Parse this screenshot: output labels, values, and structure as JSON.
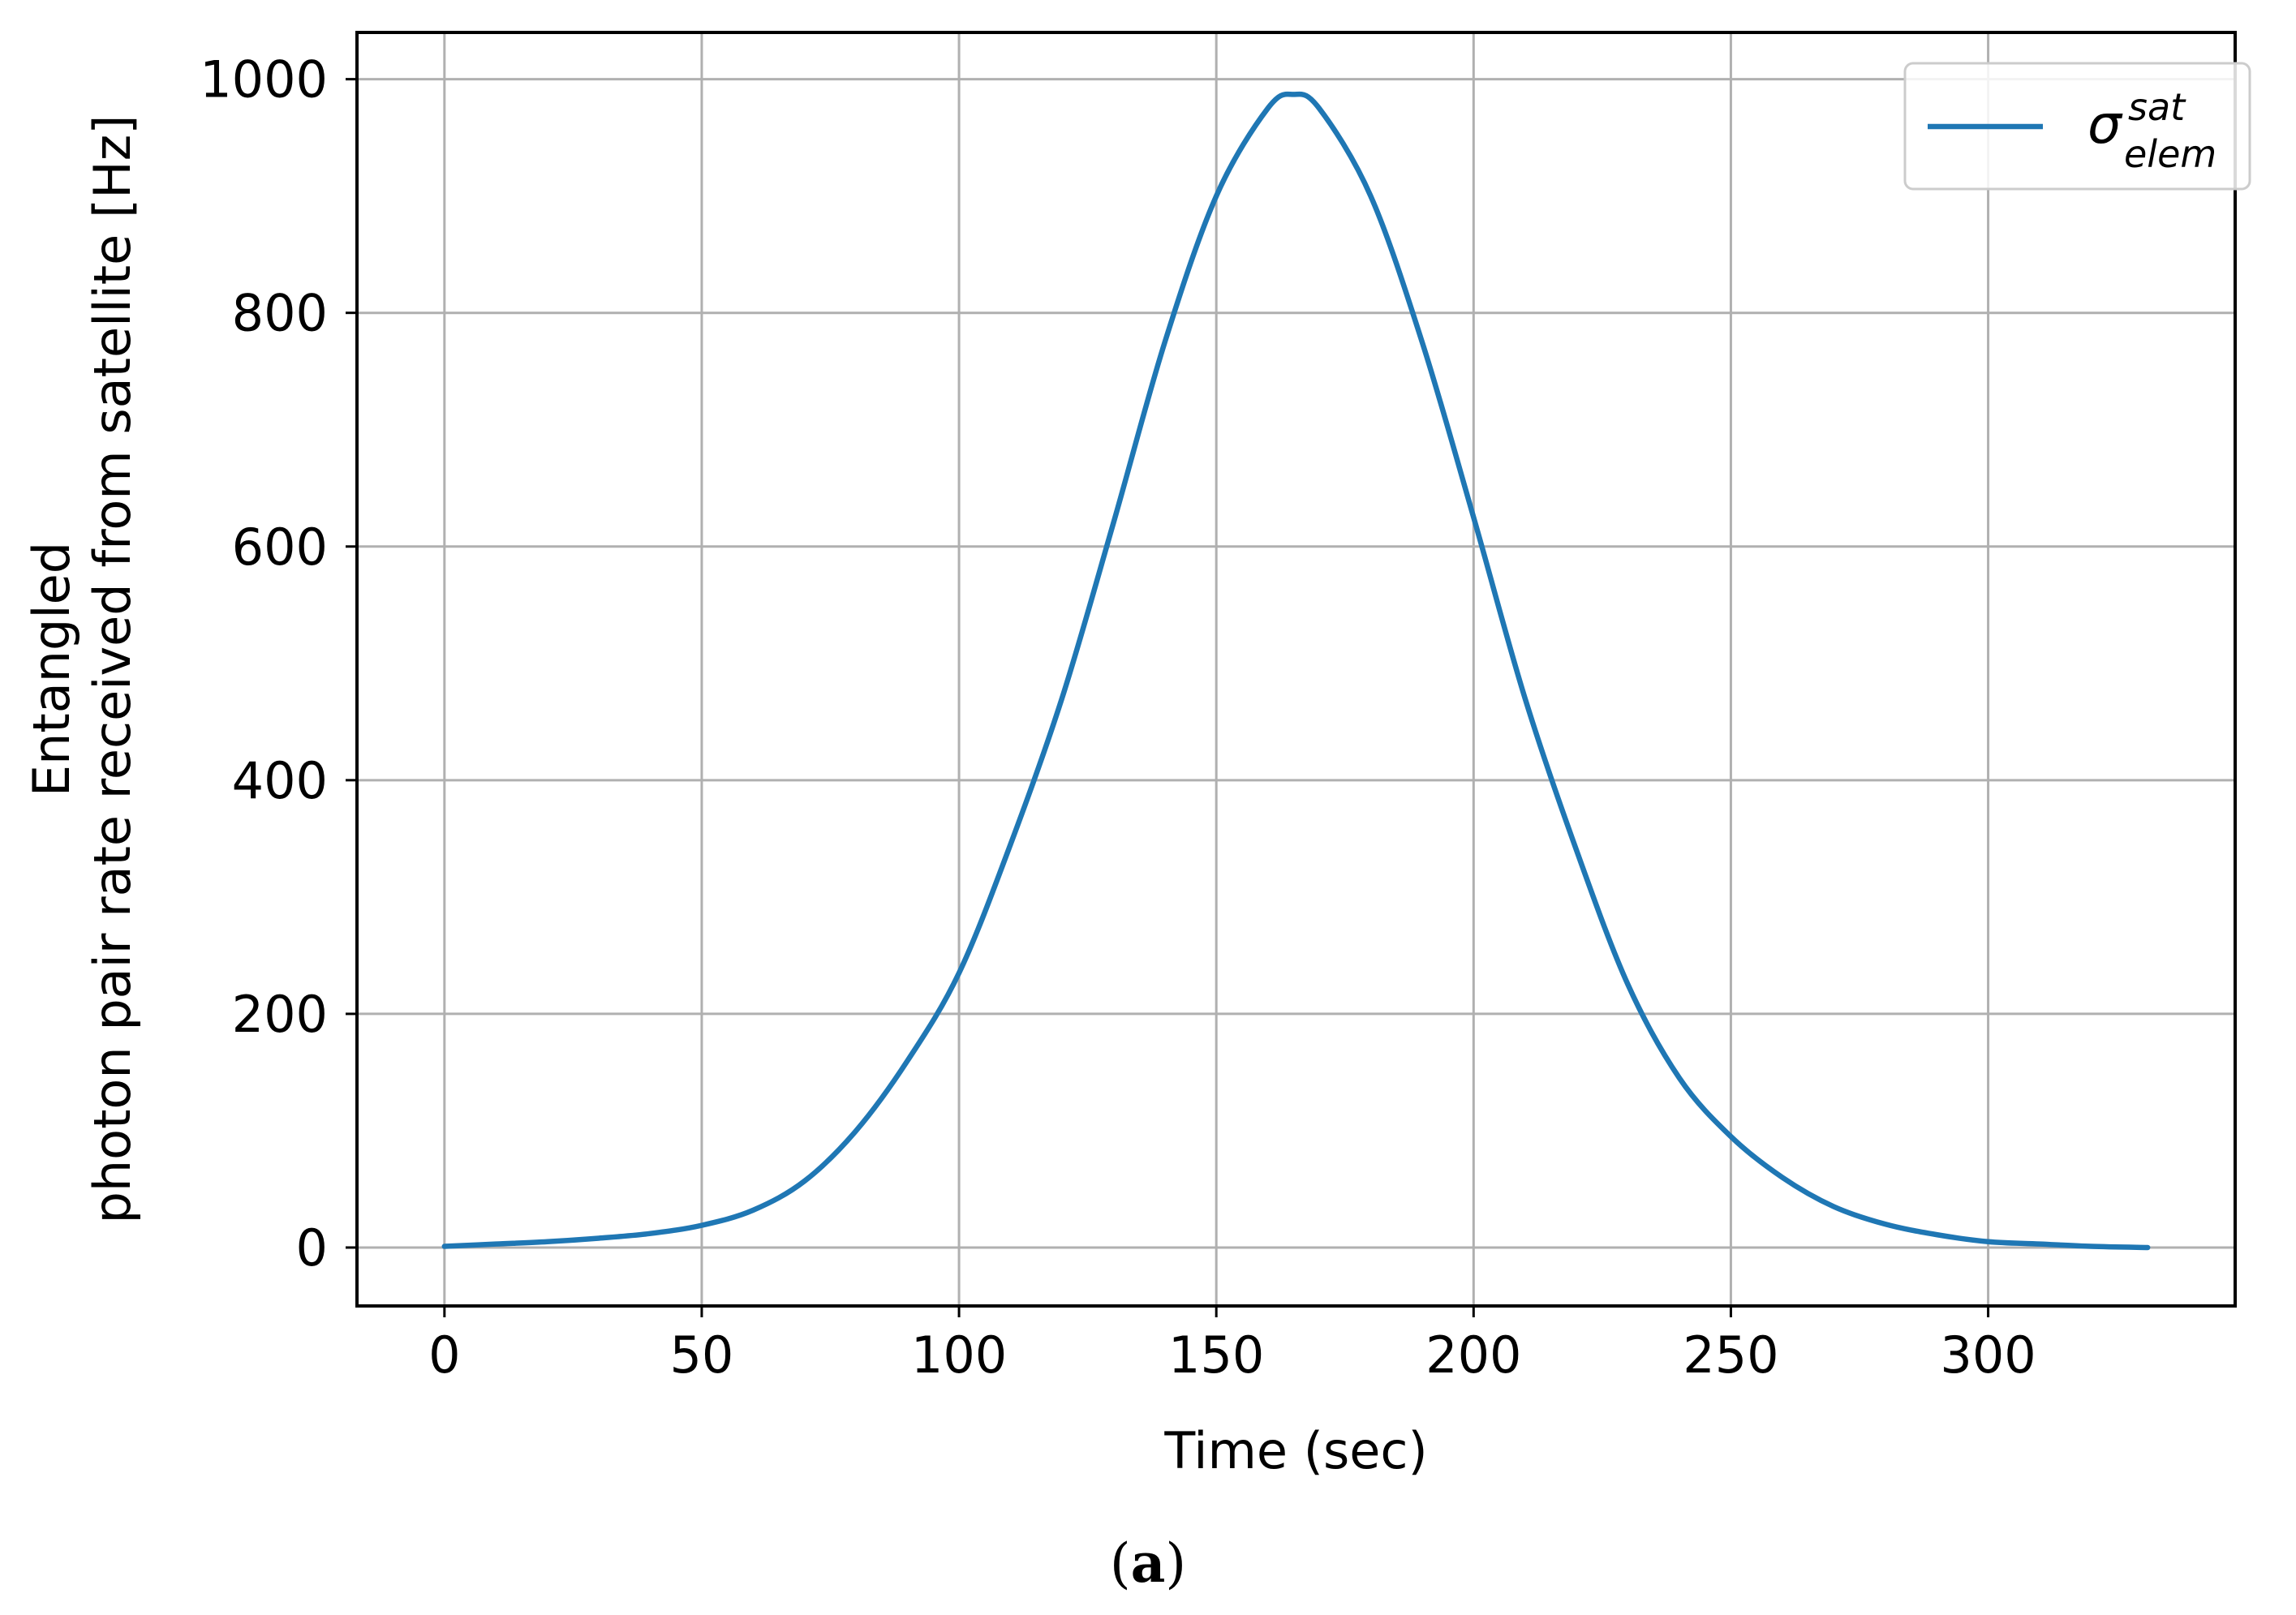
{
  "chart_data": {
    "type": "line",
    "title": "",
    "xlabel": "Time (sec)",
    "ylabel_lines": [
      "Entangled",
      "photon pair rate received from satellite [Hz]"
    ],
    "xlim": [
      -17,
      348
    ],
    "ylim": [
      -50,
      1040
    ],
    "x_ticks": [
      0,
      50,
      100,
      150,
      200,
      250,
      300
    ],
    "x_tick_labels": [
      "0",
      "50",
      "100",
      "150",
      "200",
      "250",
      "300"
    ],
    "y_ticks": [
      0,
      200,
      400,
      600,
      800,
      1000
    ],
    "y_tick_labels": [
      "0",
      "200",
      "400",
      "600",
      "800",
      "1000"
    ],
    "grid": true,
    "legend_position": "top-right",
    "series": [
      {
        "name_base": "σ",
        "name_sup": "sat",
        "name_sub": "elem",
        "color": "#1f77b4",
        "x": [
          0,
          10,
          20,
          30,
          40,
          50,
          60,
          70,
          80,
          90,
          100,
          110,
          120,
          130,
          140,
          150,
          160,
          165,
          170,
          180,
          190,
          200,
          210,
          220,
          230,
          240,
          250,
          260,
          270,
          280,
          290,
          300,
          310,
          320,
          331
        ],
        "y": [
          1,
          3,
          5,
          8,
          12,
          19,
          32,
          57,
          100,
          160,
          235,
          345,
          470,
          620,
          775,
          900,
          975,
          987,
          975,
          900,
          775,
          625,
          470,
          340,
          225,
          145,
          95,
          60,
          35,
          20,
          11,
          5,
          3,
          1,
          0
        ]
      }
    ],
    "caption": "(a)"
  }
}
